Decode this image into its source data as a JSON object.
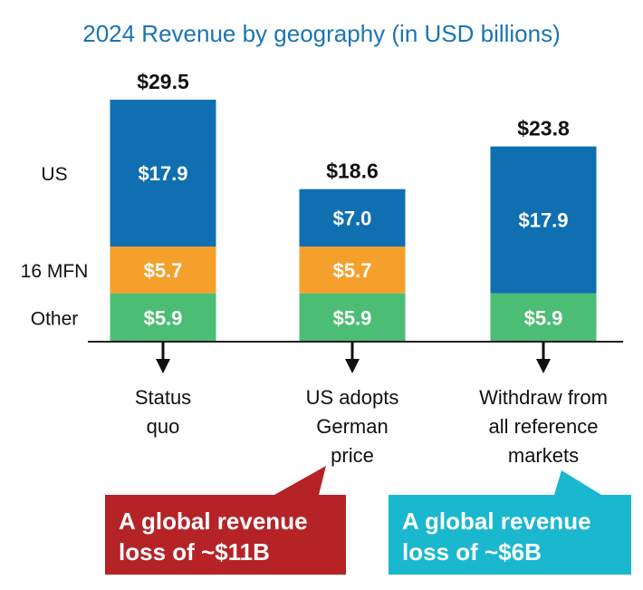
{
  "chart_data": {
    "type": "bar",
    "stacked": true,
    "title": "2024 Revenue by geography (in USD billions)",
    "categories": [
      [
        "Status",
        "quo"
      ],
      [
        "US adopts",
        "German",
        "price"
      ],
      [
        "Withdraw from",
        "all reference",
        "markets"
      ]
    ],
    "series": [
      {
        "name": "Other",
        "values": [
          5.9,
          5.9,
          5.9
        ],
        "labels": [
          "$5.9",
          "$5.9",
          "$5.9"
        ],
        "color": "#4cbd74"
      },
      {
        "name": "16 MFN",
        "values": [
          5.7,
          5.7,
          0
        ],
        "labels": [
          "$5.7",
          "$5.7",
          ""
        ],
        "color": "#f5a02a"
      },
      {
        "name": "US",
        "values": [
          17.9,
          7.0,
          17.9
        ],
        "labels": [
          "$17.9",
          "$7.0",
          "$17.9"
        ],
        "color": "#0f6fb1"
      }
    ],
    "totals": [
      "$29.5",
      "$18.6",
      "$23.8"
    ],
    "ylim": [
      0,
      30
    ],
    "grid": false,
    "legend": "row labels on left"
  },
  "callouts": [
    {
      "lines": [
        "A global revenue",
        "loss of ~$11B"
      ],
      "color": "#b52327",
      "points_to": 1
    },
    {
      "lines": [
        "A global revenue",
        "loss of ~$6B"
      ],
      "color": "#1ab8cf",
      "points_to": 2
    }
  ],
  "colors": {
    "title": "#1b74b4",
    "axis": "#222222"
  }
}
